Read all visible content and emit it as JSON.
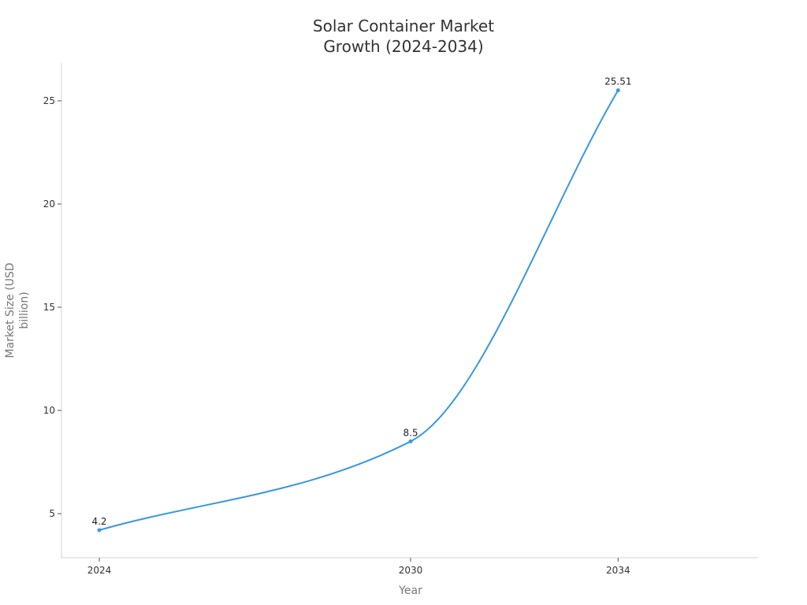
{
  "chart_data": {
    "type": "line",
    "title": "Solar Container Market Growth (2024-2034)",
    "title_lines": [
      "Solar Container Market",
      "Growth (2024-2034)"
    ],
    "xlabel": "Year",
    "ylabel": "Market Size (USD billion)",
    "ylabel_lines": [
      "Market Size (USD",
      "billion)"
    ],
    "x": [
      "2024",
      "2030",
      "2034"
    ],
    "x_numeric": [
      2024,
      2030,
      2034
    ],
    "series": [
      {
        "name": "Market Size",
        "values": [
          4.2,
          8.5,
          25.51
        ],
        "labels": [
          "4.2",
          "8.5",
          "25.51"
        ],
        "color": "#3a97e0",
        "smooth": true
      }
    ],
    "yticks": [
      5,
      10,
      15,
      20,
      25
    ],
    "ylim": [
      2.9,
      26.8
    ],
    "xlim": [
      2022.8,
      2035.2
    ],
    "grid": false,
    "legend": "none"
  }
}
